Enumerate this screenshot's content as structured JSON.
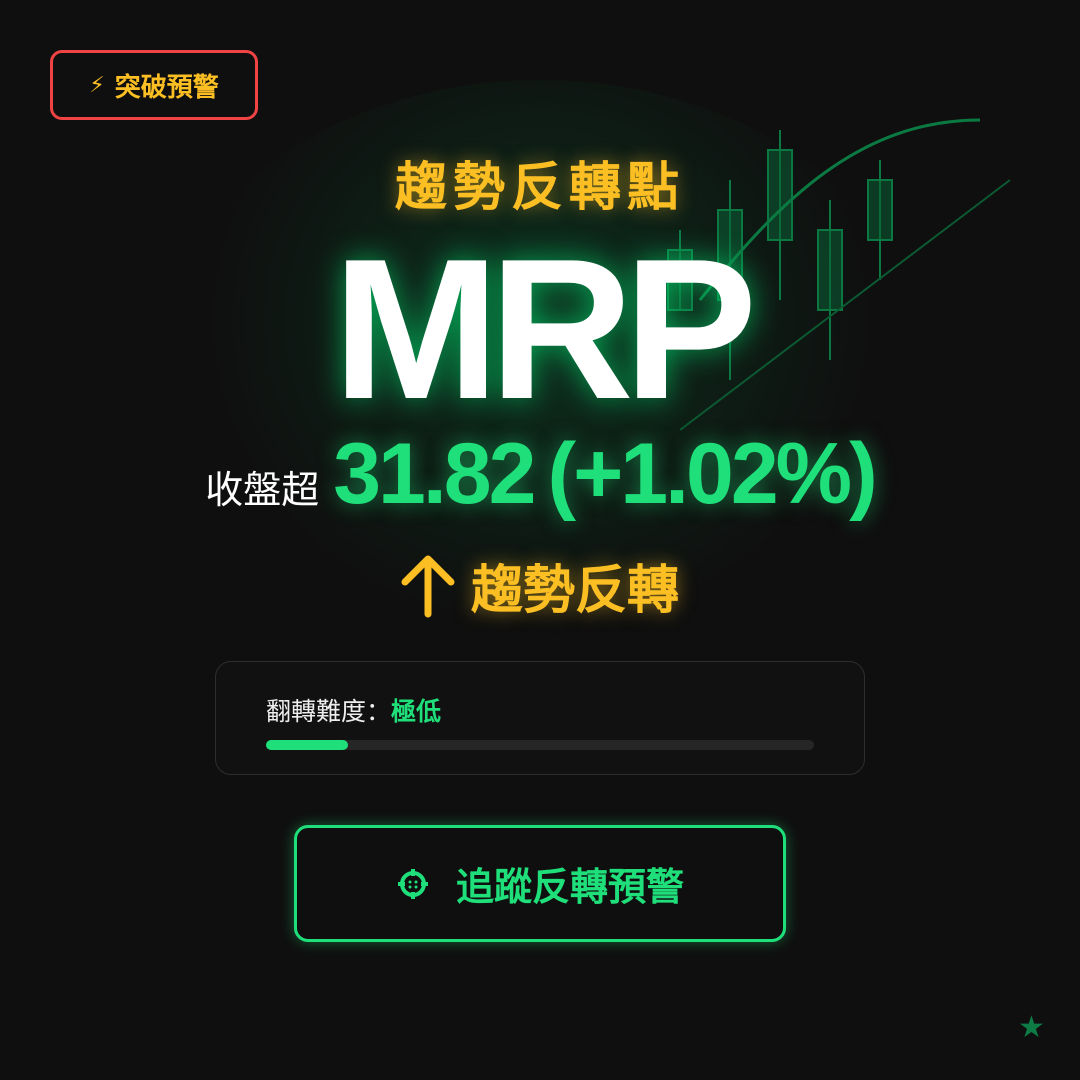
{
  "badge": {
    "icon": "lightning-icon",
    "label": "突破預警"
  },
  "subtitle": "趨勢反轉點",
  "ticker": "MRP",
  "price": {
    "label": "收盤超",
    "value": "31.82",
    "change": "(+1.02%)"
  },
  "trend": {
    "icon": "arrow-up-icon",
    "label": "趨勢反轉"
  },
  "difficulty": {
    "label": "翻轉難度：",
    "value": "極低",
    "progress_percent": 15
  },
  "cta": {
    "icon": "crosshair-icon",
    "label": "追蹤反轉預警"
  },
  "colors": {
    "accent_green": "#1fdf7a",
    "accent_yellow": "#fbbf24",
    "alert_red": "#f04444"
  }
}
